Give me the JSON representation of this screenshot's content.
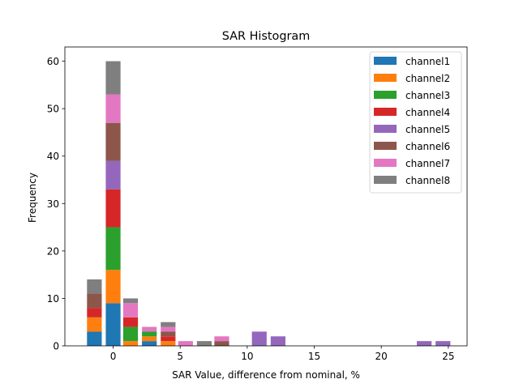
{
  "chart_data": {
    "type": "bar",
    "stacked": true,
    "title": "SAR Histogram",
    "xlabel": "SAR Value, difference from nominal, %",
    "ylabel": "Frequency",
    "xlim": [
      -3.6,
      26.4
    ],
    "ylim": [
      0,
      63
    ],
    "xticks": [
      0,
      5,
      10,
      15,
      20,
      25
    ],
    "yticks": [
      0,
      10,
      20,
      30,
      40,
      50,
      60
    ],
    "bar_width": 1.1,
    "bin_centers": [
      -1.4,
      0,
      1.3,
      2.7,
      4.1,
      5.4,
      6.8,
      8.1,
      10.9,
      12.3,
      23.2,
      24.6
    ],
    "legend_position": "upper right",
    "series": [
      {
        "name": "channel1",
        "color": "#1f77b4",
        "values": [
          3,
          9,
          0,
          1,
          0,
          0,
          0,
          0,
          0,
          0,
          0,
          0
        ]
      },
      {
        "name": "channel2",
        "color": "#ff7f0e",
        "values": [
          3,
          7,
          1,
          1,
          1,
          0,
          0,
          0,
          0,
          0,
          0,
          0
        ]
      },
      {
        "name": "channel3",
        "color": "#2ca02c",
        "values": [
          0,
          9,
          3,
          1,
          0,
          0,
          0,
          0,
          0,
          0,
          0,
          0
        ]
      },
      {
        "name": "channel4",
        "color": "#d62728",
        "values": [
          2,
          8,
          2,
          0,
          1,
          0,
          0,
          0,
          0,
          0,
          0,
          0
        ]
      },
      {
        "name": "channel5",
        "color": "#9467bd",
        "values": [
          0,
          6,
          0,
          0,
          0,
          0,
          0,
          0,
          3,
          2,
          1,
          1
        ]
      },
      {
        "name": "channel6",
        "color": "#8c564b",
        "values": [
          3,
          8,
          0,
          0,
          1,
          0,
          0,
          1,
          0,
          0,
          0,
          0
        ]
      },
      {
        "name": "channel7",
        "color": "#e377c2",
        "values": [
          0,
          6,
          3,
          1,
          1,
          1,
          0,
          1,
          0,
          0,
          0,
          0
        ]
      },
      {
        "name": "channel8",
        "color": "#7f7f7f",
        "values": [
          3,
          7,
          1,
          0,
          1,
          0,
          1,
          0,
          0,
          0,
          0,
          0
        ]
      }
    ]
  }
}
